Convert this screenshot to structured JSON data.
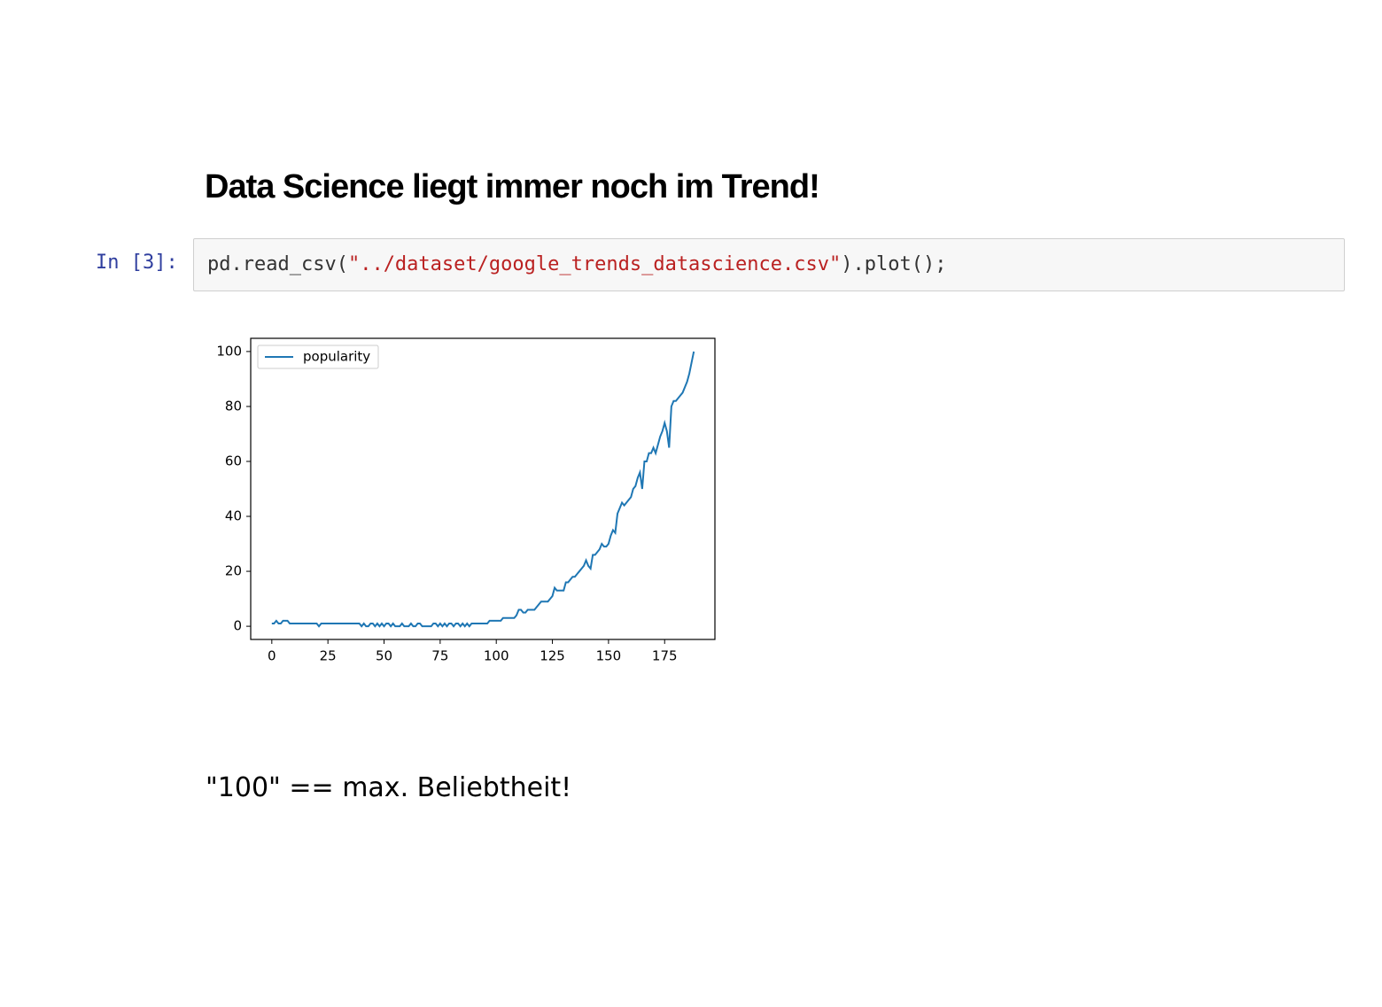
{
  "heading": "Data Science liegt immer noch im Trend!",
  "cell": {
    "prompt": "In [3]:",
    "code": [
      "pd.read_csv(",
      "\"../dataset/google_trends_datascience.csv\"",
      ").plot();"
    ]
  },
  "chart_data": {
    "type": "line",
    "series": [
      {
        "name": "popularity",
        "color": "#1f77b4",
        "values": [
          1,
          1,
          2,
          1,
          1,
          2,
          2,
          2,
          1,
          1,
          1,
          1,
          1,
          1,
          1,
          1,
          1,
          1,
          1,
          1,
          1,
          0,
          1,
          1,
          1,
          1,
          1,
          1,
          1,
          1,
          1,
          1,
          1,
          1,
          1,
          1,
          1,
          1,
          1,
          1,
          0,
          1,
          0,
          0,
          1,
          1,
          0,
          1,
          0,
          1,
          0,
          1,
          1,
          0,
          1,
          0,
          0,
          0,
          1,
          0,
          0,
          0,
          1,
          0,
          0,
          1,
          1,
          0,
          0,
          0,
          0,
          0,
          1,
          1,
          0,
          1,
          0,
          1,
          0,
          1,
          1,
          0,
          1,
          1,
          0,
          1,
          0,
          1,
          0,
          1,
          1,
          1,
          1,
          1,
          1,
          1,
          1,
          2,
          2,
          2,
          2,
          2,
          2,
          3,
          3,
          3,
          3,
          3,
          3,
          4,
          6,
          6,
          5,
          5,
          6,
          6,
          6,
          6,
          7,
          8,
          9,
          9,
          9,
          9,
          10,
          11,
          14,
          13,
          13,
          13,
          13,
          16,
          16,
          17,
          18,
          18,
          19,
          20,
          21,
          22,
          24,
          22,
          21,
          26,
          26,
          27,
          28,
          30,
          29,
          29,
          30,
          33,
          35,
          34,
          41,
          43,
          45,
          44,
          45,
          46,
          47,
          50,
          51,
          54,
          56,
          50,
          60,
          60,
          63,
          63,
          65,
          63,
          66,
          69,
          71,
          74,
          71,
          65,
          80,
          82,
          82,
          83,
          84,
          85,
          87,
          89,
          92,
          96,
          100
        ]
      }
    ],
    "xlim": [
      -9.4,
      197.4
    ],
    "ylim": [
      -4.8,
      104.8
    ],
    "xticks": [
      0,
      25,
      50,
      75,
      100,
      125,
      150,
      175
    ],
    "yticks": [
      0,
      20,
      40,
      60,
      80,
      100
    ],
    "legend": "upper left"
  },
  "note": "\"100\" == max. Beliebtheit!"
}
